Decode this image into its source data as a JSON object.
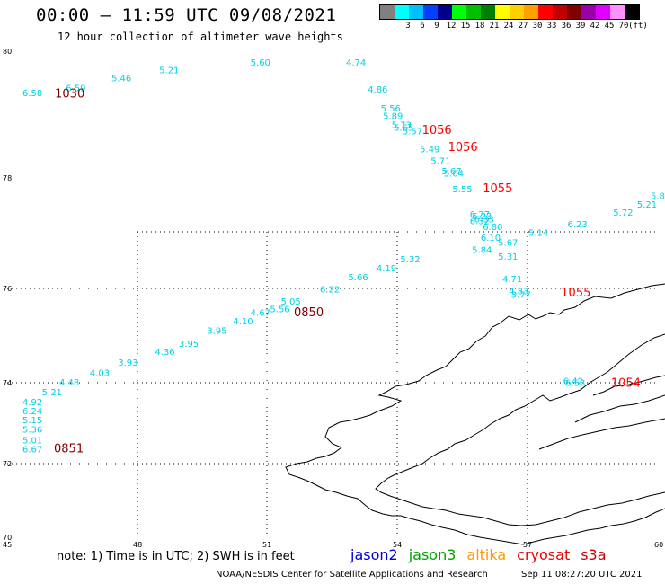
{
  "header": {
    "title": "00:00 — 11:59 UTC 09/08/2021",
    "subtitle": "12 hour collection of altimeter wave heights"
  },
  "legend": {
    "swatches": [
      {
        "color": "#808080",
        "label": ""
      },
      {
        "color": "#00ffff",
        "label": "3"
      },
      {
        "color": "#00bfff",
        "label": "6"
      },
      {
        "color": "#0040ff",
        "label": "9"
      },
      {
        "color": "#00008b",
        "label": "12"
      },
      {
        "color": "#00ff00",
        "label": "15"
      },
      {
        "color": "#00c000",
        "label": "18"
      },
      {
        "color": "#008000",
        "label": "21"
      },
      {
        "color": "#ffff00",
        "label": "24"
      },
      {
        "color": "#ffd000",
        "label": "27"
      },
      {
        "color": "#ffa000",
        "label": "30"
      },
      {
        "color": "#ff0000",
        "label": "33"
      },
      {
        "color": "#c00000",
        "label": "36"
      },
      {
        "color": "#800000",
        "label": "39"
      },
      {
        "color": "#9900aa",
        "label": "42"
      },
      {
        "color": "#e000ff",
        "label": "45"
      },
      {
        "color": "#ff90ff",
        "label": "70"
      },
      {
        "color": "#000000",
        "label": "(ft)"
      }
    ]
  },
  "map": {
    "lat_labels": [
      "80",
      "78",
      "76",
      "74",
      "72",
      "70"
    ],
    "lon_labels": [
      "45",
      "48",
      "51",
      "54",
      "57",
      "60"
    ],
    "wave_color": "#00d0e8",
    "time_colors": {
      "cryosat": "#ff0000",
      "dark": "#800000"
    },
    "wave_labels": [
      {
        "text": "6.58",
        "lon": 45.3,
        "lat": 79.08
      },
      {
        "text": "6.59",
        "lon": 46.35,
        "lat": 79.18
      },
      {
        "text": "5.46",
        "lon": 47.4,
        "lat": 79.38
      },
      {
        "text": "5.21",
        "lon": 48.5,
        "lat": 79.55
      },
      {
        "text": "5.60",
        "lon": 50.6,
        "lat": 79.7
      },
      {
        "text": "4.74",
        "lon": 52.8,
        "lat": 79.7
      },
      {
        "text": "4.86",
        "lon": 53.3,
        "lat": 79.15
      },
      {
        "text": "5.56",
        "lon": 53.6,
        "lat": 78.76
      },
      {
        "text": "5.89",
        "lon": 53.65,
        "lat": 78.6
      },
      {
        "text": "5.73",
        "lon": 53.85,
        "lat": 78.42
      },
      {
        "text": "5.65",
        "lon": 53.9,
        "lat": 78.36
      },
      {
        "text": "5.57",
        "lon": 54.1,
        "lat": 78.29
      },
      {
        "text": "5.49",
        "lon": 54.5,
        "lat": 77.92
      },
      {
        "text": "5.71",
        "lon": 54.75,
        "lat": 77.68
      },
      {
        "text": "5.67",
        "lon": 55.0,
        "lat": 77.47
      },
      {
        "text": "5.64",
        "lon": 55.05,
        "lat": 77.42
      },
      {
        "text": "5.55",
        "lon": 55.25,
        "lat": 77.1
      },
      {
        "text": "6.27",
        "lon": 55.65,
        "lat": 76.58
      },
      {
        "text": "6.23",
        "lon": 55.7,
        "lat": 76.54
      },
      {
        "text": "6.33",
        "lon": 55.75,
        "lat": 76.48
      },
      {
        "text": "6.32",
        "lon": 55.65,
        "lat": 76.44
      },
      {
        "text": "6.80",
        "lon": 55.95,
        "lat": 76.32
      },
      {
        "text": "6.10",
        "lon": 55.9,
        "lat": 76.1
      },
      {
        "text": "5.67",
        "lon": 56.3,
        "lat": 76.0
      },
      {
        "text": "5.14",
        "lon": 57.0,
        "lat": 76.2
      },
      {
        "text": "6.23",
        "lon": 57.9,
        "lat": 76.38
      },
      {
        "text": "5.72",
        "lon": 58.95,
        "lat": 76.62
      },
      {
        "text": "5.21",
        "lon": 59.5,
        "lat": 76.78
      },
      {
        "text": "5.8",
        "lon": 59.85,
        "lat": 76.96
      },
      {
        "text": "5.84",
        "lon": 55.7,
        "lat": 75.85
      },
      {
        "text": "5.31",
        "lon": 56.3,
        "lat": 75.71
      },
      {
        "text": "4.71",
        "lon": 56.4,
        "lat": 75.25
      },
      {
        "text": "4.83",
        "lon": 56.55,
        "lat": 75.0
      },
      {
        "text": "3.77",
        "lon": 56.6,
        "lat": 74.93
      },
      {
        "text": "5.32",
        "lon": 54.05,
        "lat": 75.66
      },
      {
        "text": "4.19",
        "lon": 53.5,
        "lat": 75.47
      },
      {
        "text": "5.66",
        "lon": 52.85,
        "lat": 75.29
      },
      {
        "text": "6.22",
        "lon": 52.2,
        "lat": 75.04
      },
      {
        "text": "5.05",
        "lon": 51.3,
        "lat": 74.79
      },
      {
        "text": "5.56",
        "lon": 51.05,
        "lat": 74.63
      },
      {
        "text": "4.67",
        "lon": 50.6,
        "lat": 74.56
      },
      {
        "text": "4.10",
        "lon": 50.2,
        "lat": 74.38
      },
      {
        "text": "3.95",
        "lon": 49.6,
        "lat": 74.19
      },
      {
        "text": "3.95",
        "lon": 48.95,
        "lat": 73.92
      },
      {
        "text": "4.36",
        "lon": 48.4,
        "lat": 73.75
      },
      {
        "text": "3.93",
        "lon": 47.55,
        "lat": 73.53
      },
      {
        "text": "4.03",
        "lon": 46.9,
        "lat": 73.32
      },
      {
        "text": "4.48",
        "lon": 46.2,
        "lat": 73.12
      },
      {
        "text": "5.21",
        "lon": 45.8,
        "lat": 72.92
      },
      {
        "text": "4.92",
        "lon": 45.25,
        "lat": 72.72
      },
      {
        "text": "6.24",
        "lon": 44.5,
        "lat": 72.53
      },
      {
        "text": "5.15",
        "lon": 43.8,
        "lat": 72.35
      },
      {
        "text": "5.36",
        "lon": 43.2,
        "lat": 72.15
      },
      {
        "text": "5.01",
        "lon": 42.7,
        "lat": 71.93
      },
      {
        "text": "6.67",
        "lon": 41.9,
        "lat": 71.75
      },
      {
        "text": "6.42",
        "lon": 57.8,
        "lat": 73.15
      },
      {
        "text": "6.53",
        "lon": 57.85,
        "lat": 73.11
      }
    ],
    "time_labels": [
      {
        "text": "1030",
        "lon": 46.1,
        "lat": 79.05,
        "tone": "dark"
      },
      {
        "text": "1056",
        "lon": 54.55,
        "lat": 78.3,
        "tone": "cryosat"
      },
      {
        "text": "1056",
        "lon": 55.15,
        "lat": 77.95,
        "tone": "cryosat"
      },
      {
        "text": "1055",
        "lon": 55.95,
        "lat": 77.1,
        "tone": "cryosat"
      },
      {
        "text": "1055",
        "lon": 57.75,
        "lat": 74.95,
        "tone": "cryosat"
      },
      {
        "text": "0850",
        "lon": 51.6,
        "lat": 74.55,
        "tone": "dark"
      },
      {
        "text": "1054",
        "lon": 58.9,
        "lat": 73.1,
        "tone": "cryosat"
      },
      {
        "text": "0851",
        "lon": 42.8,
        "lat": 71.75,
        "tone": "dark"
      }
    ]
  },
  "footer": {
    "note": "note:  1)  Time is in UTC;  2)  SWH is in feet",
    "missions": [
      {
        "name": "jason2",
        "color": "#0000dd"
      },
      {
        "name": "jason3",
        "color": "#00a000"
      },
      {
        "name": "altika",
        "color": "#ff9900"
      },
      {
        "name": "cryosat",
        "color": "#ee0000"
      },
      {
        "name": "s3a",
        "color": "#cc0000"
      }
    ],
    "credit": "NOAA/NESDIS Center for Satellite Applications and Research",
    "timestamp": "Sep 11 08:27:20 UTC 2021"
  }
}
